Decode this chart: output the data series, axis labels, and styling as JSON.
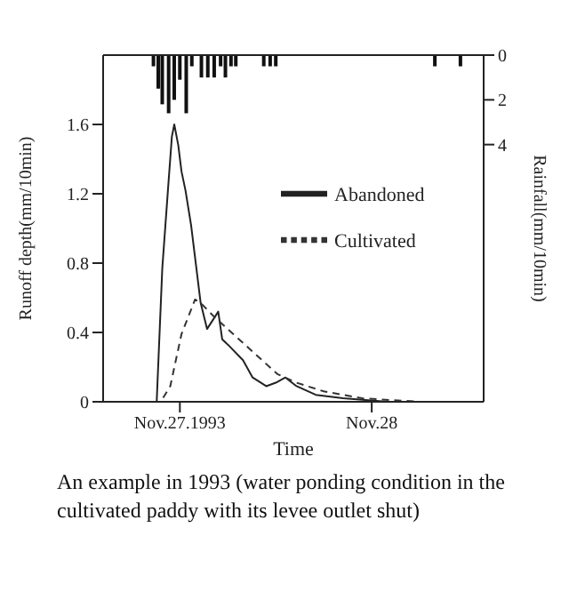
{
  "chart_data": {
    "type": "line",
    "xlabel": "Time",
    "ylabel": "Runoff depth(mm/10min)",
    "y2label": "Rainfall(mm/10min)",
    "xlim": [
      "1993-11-26T14:24",
      "1993-11-28T14:00"
    ],
    "xticks": [
      {
        "value": "1993-11-27",
        "label": "Nov.27.1993"
      },
      {
        "value": "1993-11-28",
        "label": "Nov.28"
      }
    ],
    "ylim": [
      0,
      2.0
    ],
    "yticks": [
      0,
      0.4,
      0.8,
      1.2,
      1.6
    ],
    "y2lim": [
      15.5,
      0
    ],
    "y2ticks": [
      0,
      2,
      4
    ],
    "grid": false,
    "legend": "top right",
    "marker": "none",
    "series": [
      {
        "name": "Abandoned",
        "color": "#222222",
        "line_style": "solid",
        "x": [
          "1993-11-26T14:24",
          "1993-11-26T21:06",
          "1993-11-26T21:48",
          "1993-11-26T22:36",
          "1993-11-26T23:00",
          "1993-11-26T23:18",
          "1993-11-26T23:48",
          "1993-11-27T00:12",
          "1993-11-27T00:42",
          "1993-11-27T01:24",
          "1993-11-27T02:36",
          "1993-11-27T03:24",
          "1993-11-27T04:48",
          "1993-11-27T05:18",
          "1993-11-27T06:00",
          "1993-11-27T07:54",
          "1993-11-27T09:06",
          "1993-11-27T10:48",
          "1993-11-27T12:00",
          "1993-11-27T13:12",
          "1993-11-27T14:36",
          "1993-11-27T17:00",
          "1993-11-27T20:24",
          "1993-11-28T02:00",
          "1993-11-28T14:00"
        ],
        "values": [
          0,
          0,
          0.77,
          1.28,
          1.53,
          1.6,
          1.48,
          1.33,
          1.22,
          1.02,
          0.57,
          0.42,
          0.52,
          0.36,
          0.33,
          0.24,
          0.14,
          0.09,
          0.11,
          0.14,
          0.09,
          0.04,
          0.02,
          0,
          0
        ]
      },
      {
        "name": "Cultivated",
        "color": "#333333",
        "line_style": "dashed",
        "x": [
          "1993-11-26T14:24",
          "1993-11-26T21:36",
          "1993-11-26T22:48",
          "1993-11-27T00:12",
          "1993-11-27T01:54",
          "1993-11-27T02:36",
          "1993-11-27T04:18",
          "1993-11-27T06:42",
          "1993-11-27T09:48",
          "1993-11-27T12:12",
          "1993-11-27T14:36",
          "1993-11-27T18:00",
          "1993-11-27T22:48",
          "1993-11-28T06:00",
          "1993-11-28T14:00"
        ],
        "values": [
          0,
          0,
          0.09,
          0.39,
          0.59,
          0.57,
          0.49,
          0.39,
          0.26,
          0.16,
          0.11,
          0.06,
          0.02,
          0,
          0
        ]
      },
      {
        "type": "bar",
        "axis": "y2",
        "color": "#111111",
        "x": [
          "1993-11-26T20:42",
          "1993-11-26T21:18",
          "1993-11-26T21:48",
          "1993-11-26T22:36",
          "1993-11-26T23:18",
          "1993-11-27T00:00",
          "1993-11-27T00:48",
          "1993-11-27T01:30",
          "1993-11-27T02:42",
          "1993-11-27T03:30",
          "1993-11-27T04:18",
          "1993-11-27T05:06",
          "1993-11-27T05:42",
          "1993-11-27T06:24",
          "1993-11-27T07:00",
          "1993-11-27T10:30",
          "1993-11-27T11:18",
          "1993-11-27T12:00",
          "1993-11-28T07:54",
          "1993-11-28T11:06"
        ],
        "values": [
          0.5,
          1.5,
          2.2,
          2.6,
          2.0,
          1.1,
          2.6,
          0.5,
          1.0,
          1.0,
          1.0,
          0.5,
          1.0,
          0.5,
          0.5,
          0.5,
          0.5,
          0.5,
          0.5,
          0.5
        ]
      }
    ],
    "annotations": [
      "An example in 1993 (water ponding condition in the cultivated paddy with its levee outlet shut)"
    ]
  }
}
